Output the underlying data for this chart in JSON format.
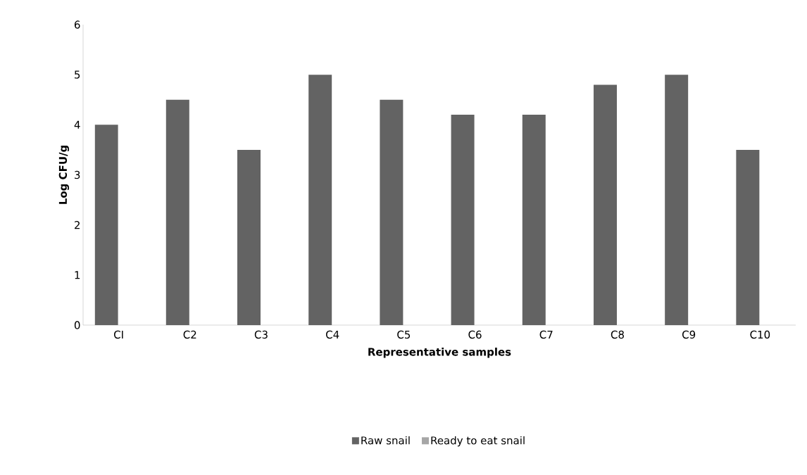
{
  "chart_data": {
    "type": "bar",
    "xlabel": "Representative samples",
    "ylabel": "Log CFU/g",
    "categories": [
      "CI",
      "C2",
      "C3",
      "C4",
      "C5",
      "C6",
      "C7",
      "C8",
      "C9",
      "C10"
    ],
    "series": [
      {
        "name": "Raw snail",
        "color": "#636363",
        "values": [
          4,
          4.5,
          3.5,
          5,
          4.5,
          4.2,
          4.2,
          4.8,
          5,
          3.5
        ]
      },
      {
        "name": "Ready to eat snail",
        "color": "#a6a6a6",
        "values": [
          0,
          0,
          0,
          0,
          0,
          0,
          0,
          0,
          0,
          0
        ]
      }
    ],
    "ylim": [
      0,
      6
    ],
    "yticks": [
      0,
      1,
      2,
      3,
      4,
      5,
      6
    ],
    "grid": false,
    "legend": "bottom"
  }
}
